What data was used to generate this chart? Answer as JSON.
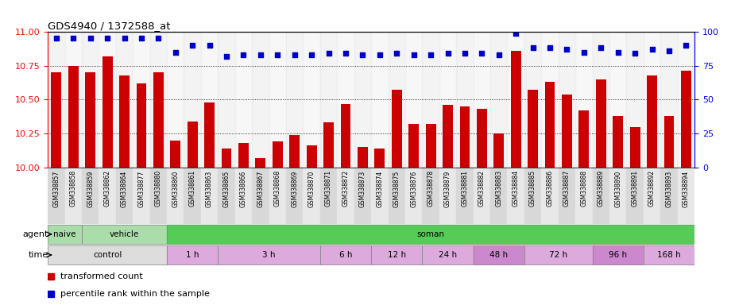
{
  "title": "GDS4940 / 1372588_at",
  "samples": [
    "GSM338857",
    "GSM338858",
    "GSM338859",
    "GSM338862",
    "GSM338864",
    "GSM338877",
    "GSM338880",
    "GSM338860",
    "GSM338861",
    "GSM338863",
    "GSM338865",
    "GSM338866",
    "GSM338867",
    "GSM338868",
    "GSM338869",
    "GSM338870",
    "GSM338871",
    "GSM338872",
    "GSM338873",
    "GSM338874",
    "GSM338875",
    "GSM338876",
    "GSM338878",
    "GSM338879",
    "GSM338881",
    "GSM338882",
    "GSM338883",
    "GSM338884",
    "GSM338885",
    "GSM338886",
    "GSM338887",
    "GSM338888",
    "GSM338889",
    "GSM338890",
    "GSM338891",
    "GSM338892",
    "GSM338893",
    "GSM338894"
  ],
  "bar_values": [
    10.7,
    10.75,
    10.7,
    10.82,
    10.68,
    10.62,
    10.7,
    10.2,
    10.34,
    10.48,
    10.14,
    10.18,
    10.07,
    10.19,
    10.24,
    10.16,
    10.33,
    10.47,
    10.15,
    10.14,
    10.57,
    10.32,
    10.32,
    10.46,
    10.45,
    10.43,
    10.25,
    10.86,
    10.57,
    10.63,
    10.54,
    10.42,
    10.65,
    10.38,
    10.3,
    10.68,
    10.38,
    10.71
  ],
  "percentile_values": [
    95,
    95,
    95,
    95,
    95,
    95,
    95,
    85,
    90,
    90,
    82,
    83,
    83,
    83,
    83,
    83,
    84,
    84,
    83,
    83,
    84,
    83,
    83,
    84,
    84,
    84,
    83,
    99,
    88,
    88,
    87,
    85,
    88,
    85,
    84,
    87,
    86,
    90
  ],
  "bar_color": "#cc0000",
  "percentile_color": "#0000cc",
  "ylim_left": [
    10.0,
    11.0
  ],
  "ylim_right": [
    0,
    100
  ],
  "yticks_left": [
    10.0,
    10.25,
    10.5,
    10.75,
    11.0
  ],
  "yticks_right": [
    0,
    25,
    50,
    75,
    100
  ],
  "agent_spans": [
    {
      "label": "naive",
      "start": 0,
      "end": 2,
      "color": "#aaddaa"
    },
    {
      "label": "vehicle",
      "start": 2,
      "end": 7,
      "color": "#aaddaa"
    },
    {
      "label": "soman",
      "start": 7,
      "end": 38,
      "color": "#55cc55"
    }
  ],
  "time_spans": [
    {
      "label": "control",
      "start": 0,
      "end": 7,
      "color": "#dddddd"
    },
    {
      "label": "1 h",
      "start": 7,
      "end": 10,
      "color": "#ddaadd"
    },
    {
      "label": "3 h",
      "start": 10,
      "end": 16,
      "color": "#ddaadd"
    },
    {
      "label": "6 h",
      "start": 16,
      "end": 19,
      "color": "#ddaadd"
    },
    {
      "label": "12 h",
      "start": 19,
      "end": 22,
      "color": "#ddaadd"
    },
    {
      "label": "24 h",
      "start": 22,
      "end": 25,
      "color": "#ddaadd"
    },
    {
      "label": "48 h",
      "start": 25,
      "end": 28,
      "color": "#cc88cc"
    },
    {
      "label": "72 h",
      "start": 28,
      "end": 32,
      "color": "#ddaadd"
    },
    {
      "label": "96 h",
      "start": 32,
      "end": 35,
      "color": "#cc88cc"
    },
    {
      "label": "168 h",
      "start": 35,
      "end": 38,
      "color": "#ddaadd"
    }
  ]
}
